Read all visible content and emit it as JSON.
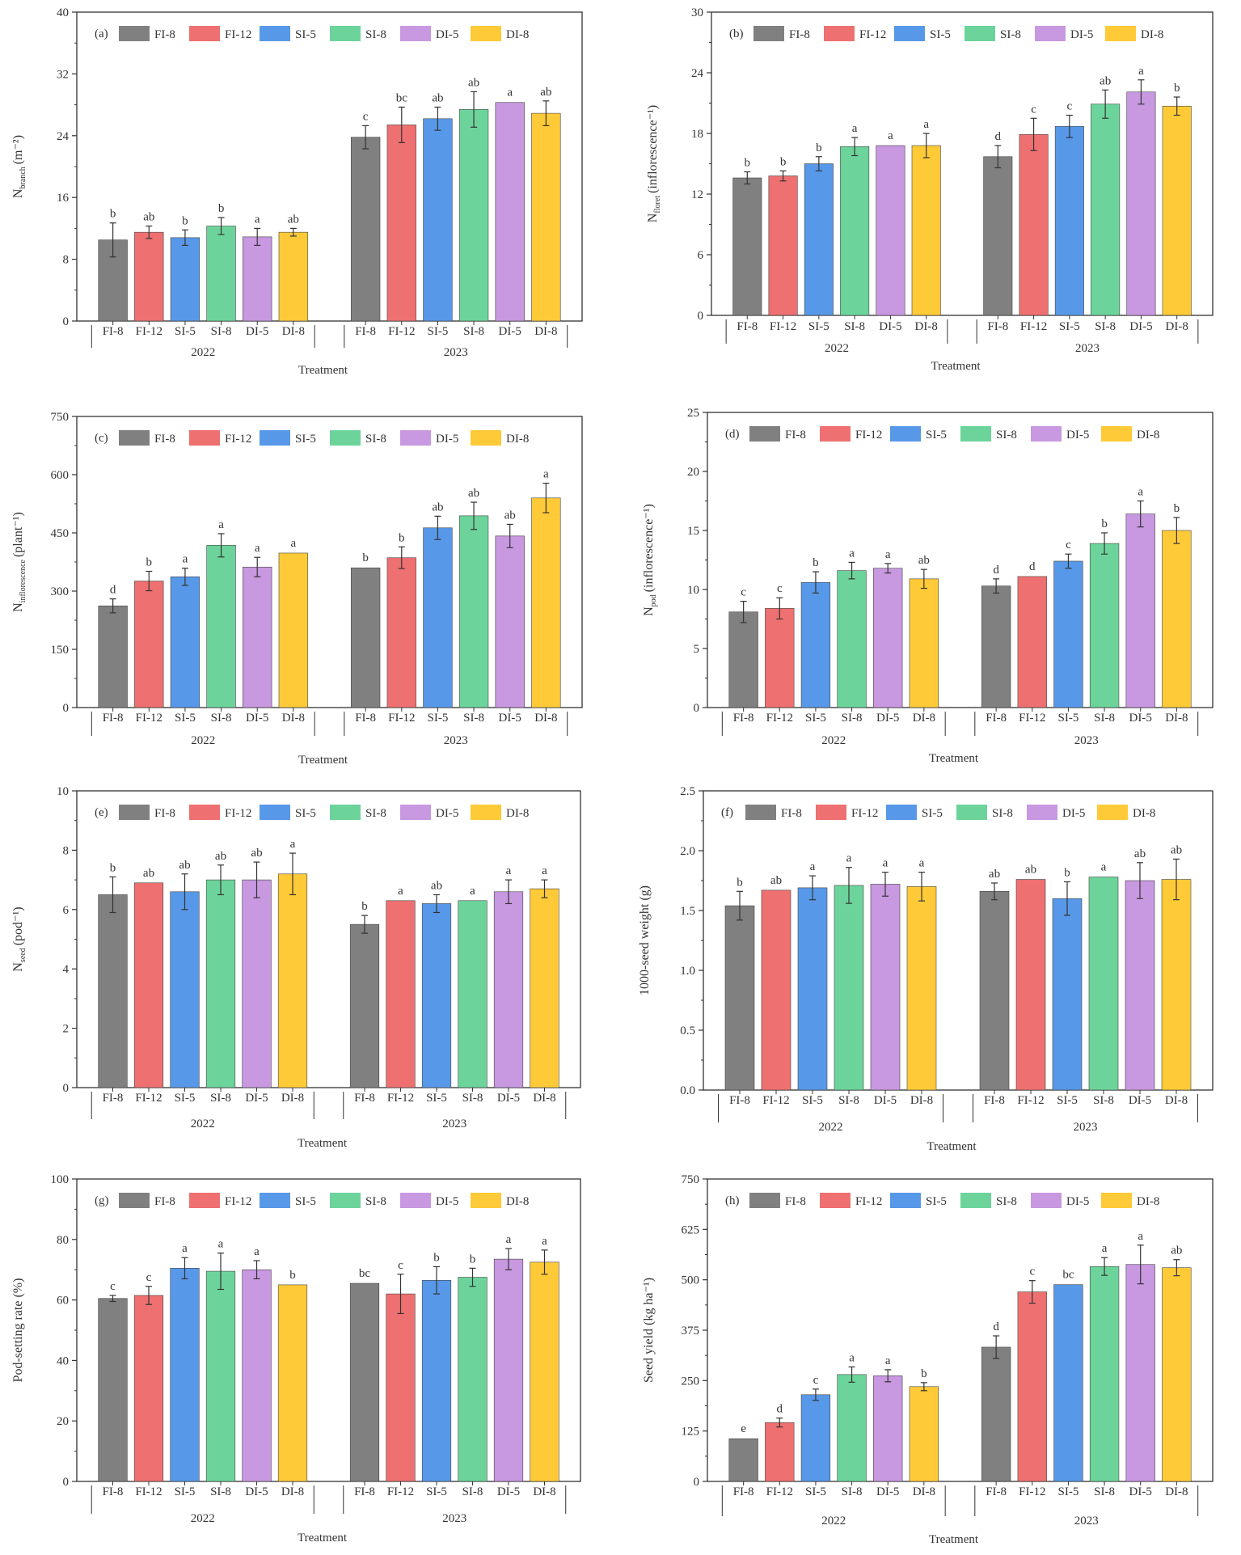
{
  "colors": {
    "FI-8": "#808080",
    "FI-12": "#ee7070",
    "SI-5": "#5898e8",
    "SI-8": "#6cd49a",
    "DI-5": "#c898e0",
    "DI-8": "#ffca38",
    "axis": "#333333",
    "errorbar": "#333333"
  },
  "chart_data": [
    {
      "id": "a",
      "type": "bar",
      "panel_label": "(a)",
      "ylabel_main": "N",
      "ylabel_sub": "branch",
      "ylabel_tail": "(m⁻²)",
      "xlabel": "Treatment",
      "ylim": [
        0,
        40
      ],
      "yticks": [
        0,
        8,
        16,
        24,
        32,
        40
      ],
      "groups": [
        "2022",
        "2023"
      ],
      "categories": [
        "FI-8",
        "FI-12",
        "SI-5",
        "SI-8",
        "DI-5",
        "DI-8"
      ],
      "series": [
        {
          "name": "2022",
          "values": [
            10.5,
            11.5,
            10.8,
            12.3,
            10.9,
            11.5
          ],
          "errors": [
            2.2,
            0.8,
            1.0,
            1.1,
            1.1,
            0.5
          ],
          "letters": [
            "b",
            "ab",
            "b",
            "b",
            "a",
            "ab"
          ]
        },
        {
          "name": "2023",
          "values": [
            23.8,
            25.4,
            26.2,
            27.4,
            28.3,
            26.9
          ],
          "errors": [
            1.5,
            2.3,
            1.5,
            2.3,
            0,
            1.6
          ],
          "letters": [
            "c",
            "bc",
            "ab",
            "ab",
            "a",
            "ab"
          ]
        }
      ]
    },
    {
      "id": "b",
      "type": "bar",
      "panel_label": "(b)",
      "ylabel_main": "N",
      "ylabel_sub": "floret",
      "ylabel_tail": "(inflorescence⁻¹)",
      "xlabel": "Treatment",
      "ylim": [
        0,
        30
      ],
      "yticks": [
        0,
        6,
        12,
        18,
        24,
        30
      ],
      "groups": [
        "2022",
        "2023"
      ],
      "categories": [
        "FI-8",
        "FI-12",
        "SI-5",
        "SI-8",
        "DI-5",
        "DI-8"
      ],
      "series": [
        {
          "name": "2022",
          "values": [
            13.6,
            13.8,
            15.0,
            16.7,
            16.8,
            16.8
          ],
          "errors": [
            0.6,
            0.5,
            0.7,
            0.9,
            0,
            1.2
          ],
          "letters": [
            "b",
            "b",
            "b",
            "a",
            "a",
            "a"
          ]
        },
        {
          "name": "2023",
          "values": [
            15.7,
            17.9,
            18.7,
            20.9,
            22.1,
            20.7
          ],
          "errors": [
            1.1,
            1.6,
            1.1,
            1.4,
            1.2,
            0.9
          ],
          "letters": [
            "d",
            "c",
            "c",
            "ab",
            "a",
            "b"
          ]
        }
      ]
    },
    {
      "id": "c",
      "type": "bar",
      "panel_label": "(c)",
      "ylabel_main": "N",
      "ylabel_sub": "inflorescence",
      "ylabel_tail": "(plant⁻¹)",
      "xlabel": "Treatment",
      "ylim": [
        0,
        750
      ],
      "yticks": [
        0,
        150,
        300,
        450,
        600,
        750
      ],
      "groups": [
        "2022",
        "2023"
      ],
      "categories": [
        "FI-8",
        "FI-12",
        "SI-5",
        "SI-8",
        "DI-5",
        "DI-8"
      ],
      "series": [
        {
          "name": "2022",
          "values": [
            262,
            326,
            337,
            418,
            362,
            398
          ],
          "errors": [
            18,
            25,
            22,
            30,
            25,
            0
          ],
          "letters": [
            "d",
            "b",
            "a",
            "a",
            "a",
            "a"
          ]
        },
        {
          "name": "2023",
          "values": [
            360,
            386,
            463,
            494,
            442,
            540
          ],
          "errors": [
            0,
            28,
            30,
            35,
            30,
            38
          ],
          "letters": [
            "b",
            "b",
            "ab",
            "ab",
            "ab",
            "a"
          ]
        }
      ]
    },
    {
      "id": "d",
      "type": "bar",
      "panel_label": "(d)",
      "ylabel_main": "N",
      "ylabel_sub": "pod",
      "ylabel_tail": "(inflorescence⁻¹)",
      "xlabel": "Treatment",
      "ylim": [
        0,
        25
      ],
      "yticks": [
        0,
        5,
        10,
        15,
        20,
        25
      ],
      "groups": [
        "2022",
        "2023"
      ],
      "categories": [
        "FI-8",
        "FI-12",
        "SI-5",
        "SI-8",
        "DI-5",
        "DI-8"
      ],
      "series": [
        {
          "name": "2022",
          "values": [
            8.1,
            8.4,
            10.6,
            11.6,
            11.8,
            10.9
          ],
          "errors": [
            0.9,
            0.9,
            0.9,
            0.7,
            0.4,
            0.8
          ],
          "letters": [
            "c",
            "c",
            "b",
            "a",
            "a",
            "ab"
          ]
        },
        {
          "name": "2023",
          "values": [
            10.3,
            11.1,
            12.4,
            13.9,
            16.4,
            15.0
          ],
          "errors": [
            0.6,
            0,
            0.6,
            0.9,
            1.1,
            1.1
          ],
          "letters": [
            "d",
            "d",
            "c",
            "b",
            "a",
            "b"
          ]
        }
      ]
    },
    {
      "id": "e",
      "type": "bar",
      "panel_label": "(e)",
      "ylabel_main": "N",
      "ylabel_sub": "seed",
      "ylabel_tail": "(pod⁻¹)",
      "xlabel": "Treatment",
      "ylim": [
        0,
        10
      ],
      "yticks": [
        0,
        2,
        4,
        6,
        8,
        10
      ],
      "groups": [
        "2022",
        "2023"
      ],
      "categories": [
        "FI-8",
        "FI-12",
        "SI-5",
        "SI-8",
        "DI-5",
        "DI-8"
      ],
      "series": [
        {
          "name": "2022",
          "values": [
            6.5,
            6.9,
            6.6,
            7.0,
            7.0,
            7.2
          ],
          "errors": [
            0.6,
            0,
            0.6,
            0.5,
            0.6,
            0.7
          ],
          "letters": [
            "b",
            "ab",
            "ab",
            "ab",
            "ab",
            "a"
          ]
        },
        {
          "name": "2023",
          "values": [
            5.5,
            6.3,
            6.2,
            6.3,
            6.6,
            6.7
          ],
          "errors": [
            0.3,
            0,
            0.3,
            0,
            0.4,
            0.3
          ],
          "letters": [
            "b",
            "a",
            "ab",
            "a",
            "a",
            "a"
          ]
        }
      ]
    },
    {
      "id": "f",
      "type": "bar",
      "panel_label": "(f)",
      "ylabel_main": "1000-seed weight (g)",
      "ylabel_sub": "",
      "ylabel_tail": "",
      "xlabel": "Treatment",
      "ylim": [
        0,
        2.5
      ],
      "yticks": [
        0,
        0.5,
        1.0,
        1.5,
        2.0,
        2.5
      ],
      "groups": [
        "2022",
        "2023"
      ],
      "categories": [
        "FI-8",
        "FI-12",
        "SI-5",
        "SI-8",
        "DI-5",
        "DI-8"
      ],
      "series": [
        {
          "name": "2022",
          "values": [
            1.54,
            1.67,
            1.69,
            1.71,
            1.72,
            1.7
          ],
          "errors": [
            0.12,
            0,
            0.1,
            0.15,
            0.1,
            0.12
          ],
          "letters": [
            "b",
            "ab",
            "a",
            "a",
            "a",
            "a"
          ]
        },
        {
          "name": "2023",
          "values": [
            1.66,
            1.76,
            1.6,
            1.78,
            1.75,
            1.76
          ],
          "errors": [
            0.07,
            0,
            0.14,
            0,
            0.15,
            0.17
          ],
          "letters": [
            "ab",
            "ab",
            "b",
            "a",
            "ab",
            "ab"
          ]
        }
      ]
    },
    {
      "id": "g",
      "type": "bar",
      "panel_label": "(g)",
      "ylabel_main": "Pod-setting rate (%)",
      "ylabel_sub": "",
      "ylabel_tail": "",
      "xlabel": "Treatment",
      "ylim": [
        0,
        100
      ],
      "yticks": [
        0,
        20,
        40,
        60,
        80,
        100
      ],
      "groups": [
        "2022",
        "2023"
      ],
      "categories": [
        "FI-8",
        "FI-12",
        "SI-5",
        "SI-8",
        "DI-5",
        "DI-8"
      ],
      "series": [
        {
          "name": "2022",
          "values": [
            60.5,
            61.5,
            70.5,
            69.5,
            70.0,
            65.0
          ],
          "errors": [
            1.0,
            3.0,
            3.5,
            6.0,
            3.0,
            0
          ],
          "letters": [
            "c",
            "c",
            "a",
            "a",
            "a",
            "b"
          ]
        },
        {
          "name": "2023",
          "values": [
            65.5,
            62.0,
            66.5,
            67.5,
            73.5,
            72.5
          ],
          "errors": [
            0,
            6.5,
            4.5,
            3.0,
            3.5,
            4.0
          ],
          "letters": [
            "bc",
            "c",
            "b",
            "b",
            "a",
            "a"
          ]
        }
      ]
    },
    {
      "id": "h",
      "type": "bar",
      "panel_label": "(h)",
      "ylabel_main": "Seed yield (kg ha⁻¹)",
      "ylabel_sub": "",
      "ylabel_tail": "",
      "xlabel": "Treatment",
      "ylim": [
        0,
        750
      ],
      "yticks": [
        0,
        125,
        250,
        375,
        500,
        625,
        750
      ],
      "groups": [
        "2022",
        "2023"
      ],
      "categories": [
        "FI-8",
        "FI-12",
        "SI-5",
        "SI-8",
        "DI-5",
        "DI-8"
      ],
      "series": [
        {
          "name": "2022",
          "values": [
            106,
            146,
            215,
            265,
            262,
            235
          ],
          "errors": [
            0,
            11,
            14,
            19,
            15,
            10
          ],
          "letters": [
            "e",
            "d",
            "c",
            "a",
            "a",
            "b"
          ]
        },
        {
          "name": "2023",
          "values": [
            333,
            470,
            488,
            533,
            538,
            530
          ],
          "errors": [
            28,
            28,
            0,
            22,
            48,
            20
          ],
          "letters": [
            "d",
            "c",
            "bc",
            "a",
            "a",
            "ab"
          ]
        }
      ]
    }
  ]
}
